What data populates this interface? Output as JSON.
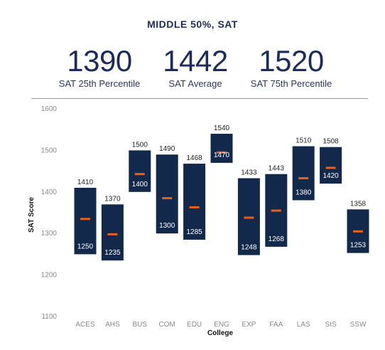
{
  "header": {
    "title": "MIDDLE 50%, SAT",
    "stats": [
      {
        "value": "1390",
        "label": "SAT 25th Percentile"
      },
      {
        "value": "1442",
        "label": "SAT Average"
      },
      {
        "value": "1520",
        "label": "SAT 75th Percentile"
      }
    ]
  },
  "chart_data": {
    "type": "range-bar",
    "xlabel": "College",
    "ylabel": "SAT Score",
    "ylim": [
      1100,
      1600
    ],
    "yticks": [
      1100,
      1200,
      1300,
      1400,
      1500,
      1600
    ],
    "categories": [
      "ACES",
      "AHS",
      "BUS",
      "COM",
      "EDU",
      "ENG",
      "EXP",
      "FAA",
      "LAS",
      "SIS",
      "SSW"
    ],
    "low": [
      1250,
      1235,
      1400,
      1300,
      1285,
      1470,
      1248,
      1268,
      1380,
      1420,
      1253
    ],
    "high": [
      1410,
      1370,
      1500,
      1490,
      1468,
      1540,
      1433,
      1443,
      1510,
      1508,
      1358
    ],
    "average": [
      1335,
      1298,
      1443,
      1385,
      1363,
      1495,
      1338,
      1355,
      1433,
      1458,
      1305
    ],
    "grid": false,
    "colors": {
      "bar": "#13294b",
      "average": "#e8601c"
    }
  }
}
